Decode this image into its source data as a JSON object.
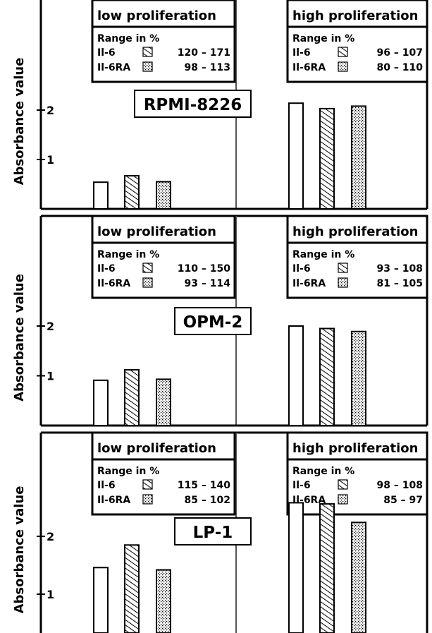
{
  "chart_data": [
    {
      "type": "bar",
      "title": "RPMI-8226",
      "ylabel": "Absorbance value",
      "y_ticks": [
        "1",
        "2"
      ],
      "ylim": [
        0,
        2.9
      ],
      "categories": [
        "low proliferation",
        "high proliferation"
      ],
      "series": [
        {
          "pattern": "open",
          "values": [
            0.54,
            2.14
          ]
        },
        {
          "name": "Il-6",
          "pattern": "hatched",
          "values": [
            0.67,
            2.03
          ]
        },
        {
          "name": "Il-6RA",
          "pattern": "dotted",
          "values": [
            0.55,
            2.08
          ]
        }
      ],
      "legends": [
        {
          "heading": "Range in %",
          "rows": [
            {
              "name": "Il-6",
              "range": "120 – 171"
            },
            {
              "name": "Il-6RA",
              "range": "98 – 113"
            }
          ]
        },
        {
          "heading": "Range in %",
          "rows": [
            {
              "name": "Il-6",
              "range": "96 – 107"
            },
            {
              "name": "Il-6RA",
              "range": "80 – 110"
            }
          ]
        }
      ]
    },
    {
      "type": "bar",
      "title": "OPM-2",
      "ylabel": "Absorbance value",
      "y_ticks": [
        "1",
        "2"
      ],
      "ylim": [
        0,
        2.9
      ],
      "categories": [
        "low proliferation",
        "high proliferation"
      ],
      "series": [
        {
          "pattern": "open",
          "values": [
            0.91,
            2.0
          ]
        },
        {
          "name": "Il-6",
          "pattern": "hatched",
          "values": [
            1.12,
            1.95
          ]
        },
        {
          "name": "Il-6RA",
          "pattern": "dotted",
          "values": [
            0.93,
            1.89
          ]
        }
      ],
      "legends": [
        {
          "heading": "Range in %",
          "rows": [
            {
              "name": "Il-6",
              "range": "110 – 150"
            },
            {
              "name": "Il-6RA",
              "range": "93 – 114"
            }
          ]
        },
        {
          "heading": "Range in %",
          "rows": [
            {
              "name": "Il-6",
              "range": "93 – 108"
            },
            {
              "name": "Il-6RA",
              "range": "81 – 105"
            }
          ]
        }
      ]
    },
    {
      "type": "bar",
      "title": "LP-1",
      "ylabel": "Absorbance value",
      "y_ticks": [
        "1",
        "2"
      ],
      "ylim": [
        0,
        2.9
      ],
      "categories": [
        "low proliferation",
        "high proliferation"
      ],
      "series": [
        {
          "pattern": "open",
          "values": [
            1.46,
            2.58
          ]
        },
        {
          "name": "Il-6",
          "pattern": "hatched",
          "values": [
            1.85,
            2.56
          ]
        },
        {
          "name": "Il-6RA",
          "pattern": "dotted",
          "values": [
            1.42,
            2.24
          ]
        }
      ],
      "legends": [
        {
          "heading": "Range in %",
          "rows": [
            {
              "name": "Il-6",
              "range": "115 – 140"
            },
            {
              "name": "Il-6RA",
              "range": "85 – 102"
            }
          ]
        },
        {
          "heading": "Range in %",
          "rows": [
            {
              "name": "Il-6",
              "range": "98 – 108"
            },
            {
              "name": "Il-6RA",
              "range": "85 – 97"
            }
          ]
        }
      ]
    }
  ]
}
